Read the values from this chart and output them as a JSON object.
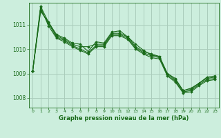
{
  "title": "Graphe pression niveau de la mer (hPa)",
  "background_color": "#cceedd",
  "grid_color": "#aaccbb",
  "line_color": "#1a6b1a",
  "xlim": [
    -0.5,
    23.5
  ],
  "ylim": [
    1007.6,
    1011.9
  ],
  "yticks": [
    1008,
    1009,
    1010,
    1011
  ],
  "xticks": [
    0,
    1,
    2,
    3,
    4,
    5,
    6,
    7,
    8,
    9,
    10,
    11,
    12,
    13,
    14,
    15,
    16,
    17,
    18,
    19,
    20,
    21,
    22,
    23
  ],
  "series": [
    [
      1009.1,
      1011.75,
      1011.1,
      1010.6,
      1010.45,
      1010.25,
      1010.2,
      1009.9,
      1010.3,
      1010.25,
      1010.7,
      1010.75,
      1010.5,
      1010.2,
      1009.95,
      1009.75,
      1009.7,
      1009.0,
      1008.8,
      1008.3,
      1008.4,
      1008.6,
      1008.85,
      1008.9
    ],
    [
      1009.1,
      1011.55,
      1011.1,
      1010.55,
      1010.4,
      1010.2,
      1010.1,
      1010.1,
      1010.2,
      1010.2,
      1010.65,
      1010.65,
      1010.5,
      1010.1,
      1009.9,
      1009.8,
      1009.7,
      1009.0,
      1008.75,
      1008.3,
      1008.35,
      1008.6,
      1008.8,
      1008.85
    ],
    [
      1009.1,
      1011.6,
      1011.05,
      1010.5,
      1010.35,
      1010.15,
      1010.0,
      1009.85,
      1010.15,
      1010.15,
      1010.6,
      1010.6,
      1010.45,
      1010.05,
      1009.85,
      1009.72,
      1009.65,
      1008.95,
      1008.7,
      1008.25,
      1008.3,
      1008.55,
      1008.75,
      1008.8
    ],
    [
      1009.1,
      1011.7,
      1010.95,
      1010.45,
      1010.3,
      1010.1,
      1009.95,
      1009.8,
      1010.1,
      1010.1,
      1010.55,
      1010.55,
      1010.4,
      1010.0,
      1009.8,
      1009.65,
      1009.6,
      1008.9,
      1008.65,
      1008.2,
      1008.25,
      1008.5,
      1008.7,
      1008.75
    ]
  ]
}
